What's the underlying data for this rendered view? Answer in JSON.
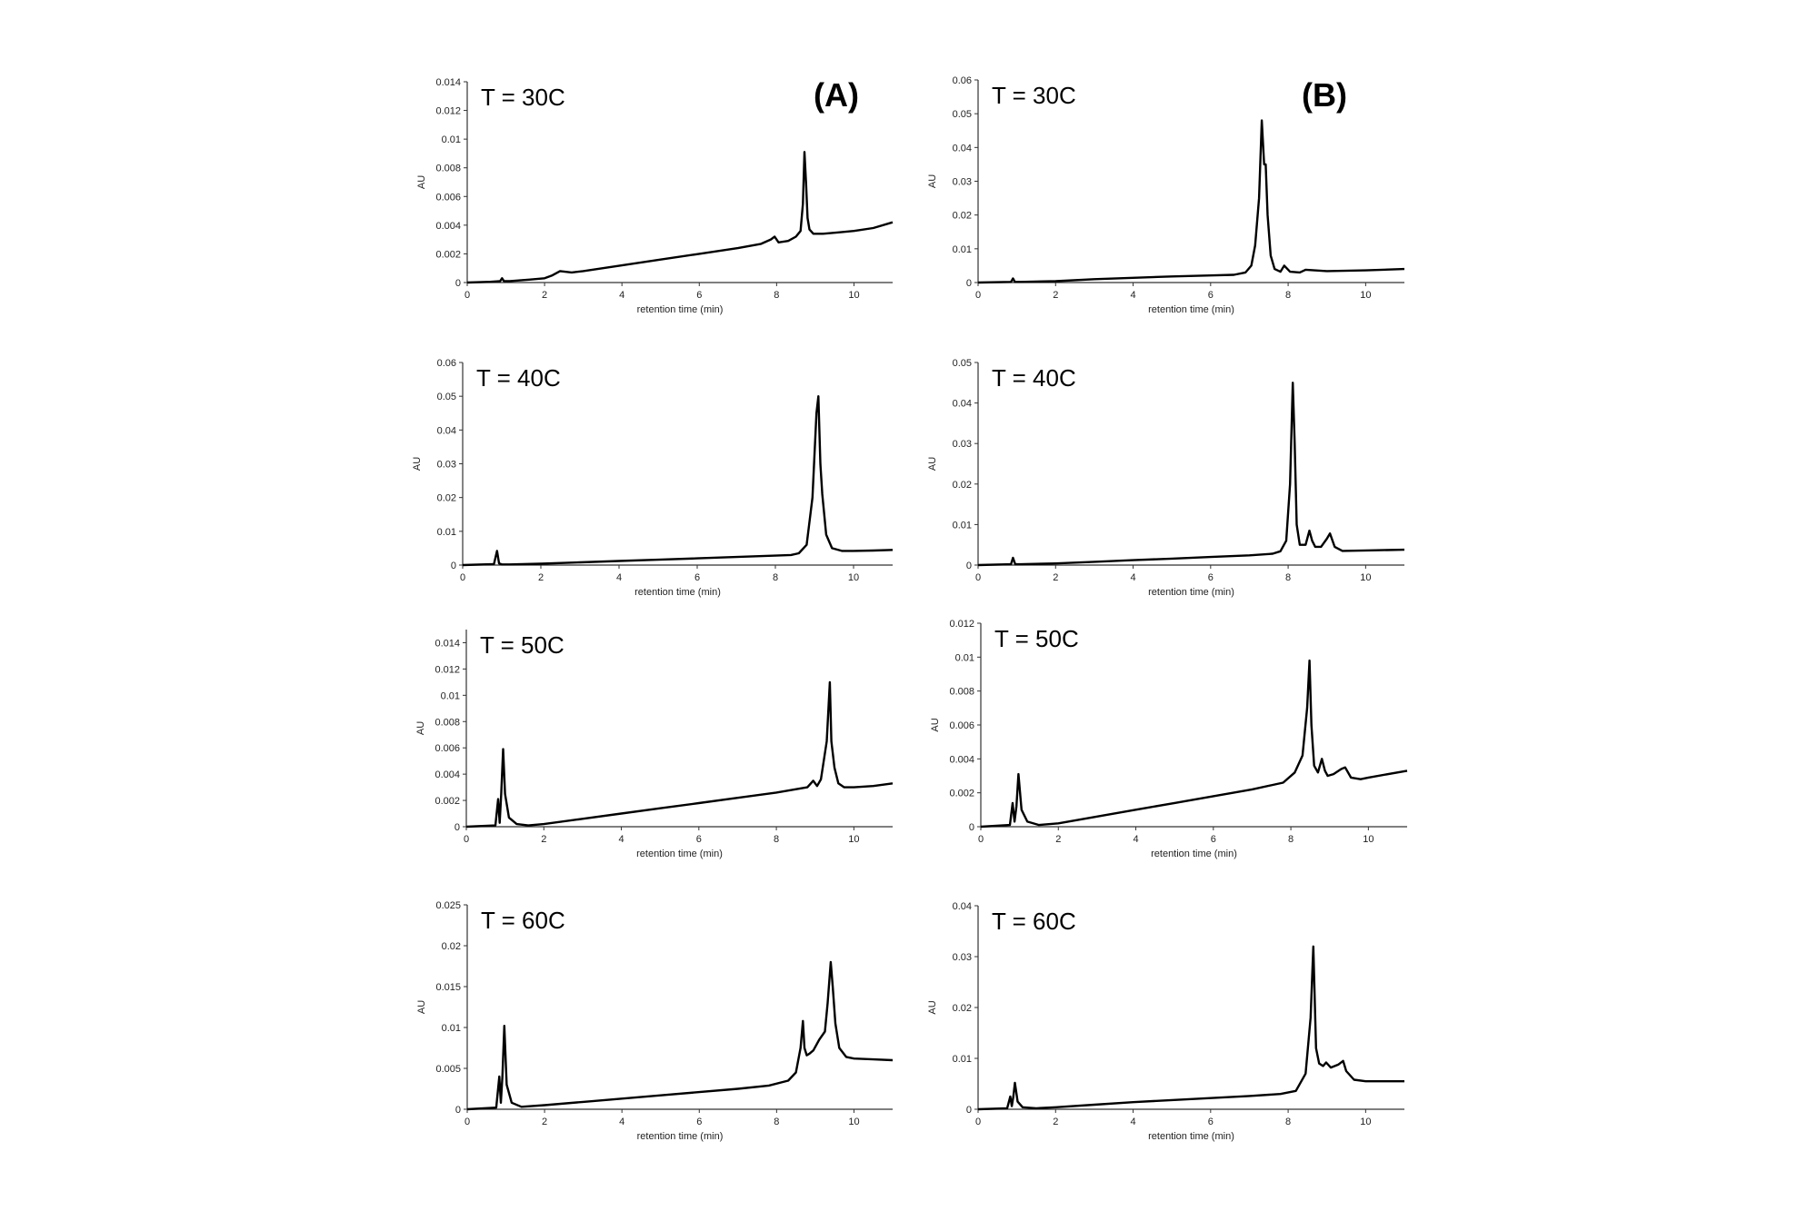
{
  "panel_labels": [
    "(A)",
    "(B)"
  ],
  "chart_data": [
    {
      "id": "A30",
      "type": "line",
      "title": "T = 30C",
      "panel_label": "(A)",
      "xlabel": "retention time (min)",
      "ylabel": "AU",
      "xlim": [
        0,
        11
      ],
      "ylim": [
        0,
        0.014
      ],
      "xticks": [
        0,
        2,
        4,
        6,
        8,
        10
      ],
      "yticks": [
        0,
        0.002,
        0.004,
        0.006,
        0.008,
        0.01,
        0.012,
        0.014
      ],
      "ytick_labels": [
        "0",
        "0.002",
        "0.004",
        "0.006",
        "0.008",
        "0.01",
        "0.012",
        "0.014"
      ],
      "series": [
        {
          "x": [
            0,
            0.6,
            0.85,
            0.9,
            0.95,
            1.1,
            1.6,
            2.0,
            2.2,
            2.4,
            2.7,
            3,
            4,
            5,
            6,
            7,
            7.6,
            7.85,
            7.95,
            8.05,
            8.3,
            8.5,
            8.62,
            8.68,
            8.72,
            8.76,
            8.8,
            8.85,
            8.95,
            9.2,
            9.6,
            10,
            10.5,
            11
          ],
          "y": [
            0,
            5e-05,
            0.0001,
            0.0003,
            0.0001,
            0.0001,
            0.0002,
            0.0003,
            0.0005,
            0.0008,
            0.0007,
            0.0008,
            0.0012,
            0.0016,
            0.002,
            0.0024,
            0.0027,
            0.003,
            0.0032,
            0.0028,
            0.0029,
            0.0032,
            0.0036,
            0.0055,
            0.0091,
            0.007,
            0.0045,
            0.0037,
            0.0034,
            0.0034,
            0.0035,
            0.0036,
            0.0038,
            0.0042
          ]
        }
      ]
    },
    {
      "id": "B30",
      "type": "line",
      "title": "T = 30C",
      "panel_label": "(B)",
      "xlabel": "retention time (min)",
      "ylabel": "AU",
      "xlim": [
        0,
        11
      ],
      "ylim": [
        0,
        0.06
      ],
      "xticks": [
        0,
        2,
        4,
        6,
        8,
        10
      ],
      "yticks": [
        0,
        0.01,
        0.02,
        0.03,
        0.04,
        0.05,
        0.06
      ],
      "ytick_labels": [
        "0",
        "0.01",
        "0.02",
        "0.03",
        "0.04",
        "0.05",
        "0.06"
      ],
      "series": [
        {
          "x": [
            0,
            0.85,
            0.9,
            0.95,
            1.1,
            2,
            3,
            4,
            5,
            6,
            6.6,
            6.9,
            7.05,
            7.15,
            7.25,
            7.32,
            7.38,
            7.42,
            7.47,
            7.55,
            7.65,
            7.8,
            7.9,
            8.05,
            8.3,
            8.45,
            9,
            10,
            11
          ],
          "y": [
            0,
            0.0002,
            0.0012,
            0.0002,
            0.0002,
            0.0004,
            0.001,
            0.0014,
            0.0018,
            0.0021,
            0.0023,
            0.003,
            0.005,
            0.011,
            0.025,
            0.048,
            0.035,
            0.035,
            0.02,
            0.008,
            0.004,
            0.0032,
            0.005,
            0.0032,
            0.003,
            0.0038,
            0.0034,
            0.0036,
            0.004
          ]
        }
      ]
    },
    {
      "id": "A40",
      "type": "line",
      "title": "T = 40C",
      "panel_label": "(A)",
      "xlabel": "retention time (min)",
      "ylabel": "AU",
      "xlim": [
        0,
        11
      ],
      "ylim": [
        0,
        0.06
      ],
      "xticks": [
        0,
        2,
        4,
        6,
        8,
        10
      ],
      "yticks": [
        0,
        0.01,
        0.02,
        0.03,
        0.04,
        0.05,
        0.06
      ],
      "ytick_labels": [
        "0",
        "0.01",
        "0.02",
        "0.03",
        "0.04",
        "0.05",
        "0.06"
      ],
      "series": [
        {
          "x": [
            0,
            0.8,
            0.88,
            0.93,
            1.0,
            1.2,
            2,
            3,
            4,
            5,
            6,
            7,
            8,
            8.4,
            8.6,
            8.8,
            8.95,
            9.05,
            9.1,
            9.15,
            9.2,
            9.3,
            9.45,
            9.7,
            10,
            10.5,
            11
          ],
          "y": [
            0,
            0.0003,
            0.0042,
            0.0005,
            0.0002,
            0.0002,
            0.0004,
            0.0008,
            0.0012,
            0.0016,
            0.002,
            0.0024,
            0.0028,
            0.003,
            0.0035,
            0.006,
            0.02,
            0.045,
            0.05,
            0.03,
            0.021,
            0.009,
            0.005,
            0.0042,
            0.0042,
            0.0043,
            0.0045
          ]
        }
      ]
    },
    {
      "id": "B40",
      "type": "line",
      "title": "T = 40C",
      "panel_label": "(B)",
      "xlabel": "retention time (min)",
      "ylabel": "AU",
      "xlim": [
        0,
        11
      ],
      "ylim": [
        0,
        0.05
      ],
      "xticks": [
        0,
        2,
        4,
        6,
        8,
        10
      ],
      "yticks": [
        0,
        0.01,
        0.02,
        0.03,
        0.04,
        0.05
      ],
      "ytick_labels": [
        "0",
        "0.01",
        "0.02",
        "0.03",
        "0.04",
        "0.05"
      ],
      "series": [
        {
          "x": [
            0,
            0.85,
            0.9,
            0.96,
            1.1,
            2,
            3,
            4,
            5,
            6,
            7,
            7.6,
            7.8,
            7.95,
            8.05,
            8.12,
            8.17,
            8.22,
            8.3,
            8.45,
            8.55,
            8.62,
            8.7,
            8.85,
            9.0,
            9.08,
            9.2,
            9.4,
            10,
            11
          ],
          "y": [
            0,
            0.0002,
            0.0018,
            0.0002,
            0.0002,
            0.0004,
            0.0008,
            0.0012,
            0.0016,
            0.002,
            0.0024,
            0.0028,
            0.0034,
            0.006,
            0.02,
            0.045,
            0.03,
            0.01,
            0.005,
            0.005,
            0.0085,
            0.006,
            0.0045,
            0.0045,
            0.0065,
            0.0078,
            0.0045,
            0.0035,
            0.0036,
            0.0038
          ]
        }
      ]
    },
    {
      "id": "A50",
      "type": "line",
      "title": "T = 50C",
      "panel_label": "(A)",
      "xlabel": "retention time (min)",
      "ylabel": "AU",
      "xlim": [
        0,
        11
      ],
      "ylim": [
        0,
        0.015
      ],
      "xticks": [
        0,
        2,
        4,
        6,
        8,
        10
      ],
      "yticks": [
        0,
        0.002,
        0.004,
        0.006,
        0.008,
        0.01,
        0.012,
        0.014
      ],
      "ytick_labels": [
        "0",
        "0.002",
        "0.004",
        "0.006",
        "0.008",
        "0.01",
        "0.012",
        "0.014"
      ],
      "series": [
        {
          "x": [
            0,
            0.75,
            0.82,
            0.86,
            0.9,
            0.95,
            1.0,
            1.1,
            1.3,
            1.6,
            2,
            3,
            4,
            5,
            6,
            7,
            8,
            8.8,
            8.95,
            9.05,
            9.15,
            9.3,
            9.38,
            9.42,
            9.5,
            9.6,
            9.75,
            10,
            10.5,
            11
          ],
          "y": [
            0,
            0.0001,
            0.0021,
            0.0003,
            0.0025,
            0.0059,
            0.0025,
            0.0007,
            0.0002,
            0.0001,
            0.0002,
            0.0006,
            0.001,
            0.0014,
            0.0018,
            0.0022,
            0.0026,
            0.003,
            0.0035,
            0.0031,
            0.0036,
            0.0065,
            0.011,
            0.0065,
            0.0045,
            0.0033,
            0.003,
            0.003,
            0.0031,
            0.0033
          ]
        }
      ]
    },
    {
      "id": "B50",
      "type": "line",
      "title": "T = 50C",
      "panel_label": "(B)",
      "xlabel": "retention time (min)",
      "ylabel": "AU",
      "xlim": [
        0,
        11
      ],
      "ylim": [
        0,
        0.012
      ],
      "xticks": [
        0,
        2,
        4,
        6,
        8,
        10
      ],
      "yticks": [
        0,
        0.002,
        0.004,
        0.006,
        0.008,
        0.01,
        0.012
      ],
      "ytick_labels": [
        "0",
        "0.002",
        "0.004",
        "0.006",
        "0.008",
        "0.01",
        "0.012"
      ],
      "series": [
        {
          "x": [
            0,
            0.75,
            0.82,
            0.87,
            0.92,
            0.97,
            1.05,
            1.2,
            1.5,
            2,
            3,
            4,
            5,
            6,
            7,
            7.8,
            8.1,
            8.3,
            8.42,
            8.48,
            8.53,
            8.6,
            8.7,
            8.8,
            8.88,
            8.95,
            9.1,
            9.3,
            9.4,
            9.55,
            9.8,
            10,
            11
          ],
          "y": [
            0,
            0.0001,
            0.0014,
            0.0003,
            0.0012,
            0.0031,
            0.001,
            0.0003,
            0.0001,
            0.0002,
            0.0006,
            0.001,
            0.0014,
            0.0018,
            0.0022,
            0.0026,
            0.0032,
            0.0042,
            0.007,
            0.0098,
            0.006,
            0.0036,
            0.0032,
            0.004,
            0.0033,
            0.003,
            0.0031,
            0.0034,
            0.0035,
            0.0029,
            0.0028,
            0.0029,
            0.0033
          ]
        }
      ]
    },
    {
      "id": "A60",
      "type": "line",
      "title": "T = 60C",
      "panel_label": "(A)",
      "xlabel": "retention time (min)",
      "ylabel": "AU",
      "xlim": [
        0,
        11
      ],
      "ylim": [
        0,
        0.025
      ],
      "xticks": [
        0,
        2,
        4,
        6,
        8,
        10
      ],
      "yticks": [
        0,
        0.005,
        0.01,
        0.015,
        0.02,
        0.025
      ],
      "ytick_labels": [
        "0",
        "0.005",
        "0.01",
        "0.015",
        "0.02",
        "0.025"
      ],
      "series": [
        {
          "x": [
            0,
            0.75,
            0.83,
            0.87,
            0.91,
            0.96,
            1.02,
            1.15,
            1.4,
            2,
            3,
            4,
            5,
            6,
            7,
            7.8,
            8.3,
            8.5,
            8.62,
            8.68,
            8.72,
            8.78,
            8.85,
            8.95,
            9.1,
            9.25,
            9.32,
            9.4,
            9.45,
            9.52,
            9.62,
            9.8,
            10,
            10.5,
            11
          ],
          "y": [
            0,
            0.0002,
            0.004,
            0.0008,
            0.004,
            0.0102,
            0.003,
            0.0008,
            0.0003,
            0.0005,
            0.0009,
            0.0013,
            0.0017,
            0.0021,
            0.0025,
            0.0029,
            0.0035,
            0.0045,
            0.0075,
            0.0108,
            0.0075,
            0.0066,
            0.0068,
            0.0072,
            0.0085,
            0.0095,
            0.013,
            0.018,
            0.015,
            0.0105,
            0.0075,
            0.0064,
            0.0062,
            0.0061,
            0.006
          ]
        }
      ]
    },
    {
      "id": "B60",
      "type": "line",
      "title": "T = 60C",
      "panel_label": "(B)",
      "xlabel": "retention time (min)",
      "ylabel": "AU",
      "xlim": [
        0,
        11
      ],
      "ylim": [
        0,
        0.04
      ],
      "xticks": [
        0,
        2,
        4,
        6,
        8,
        10
      ],
      "yticks": [
        0,
        0.01,
        0.02,
        0.03,
        0.04
      ],
      "ytick_labels": [
        "0",
        "0.01",
        "0.02",
        "0.03",
        "0.04"
      ],
      "series": [
        {
          "x": [
            0,
            0.75,
            0.83,
            0.87,
            0.91,
            0.95,
            1.02,
            1.15,
            1.5,
            2,
            3,
            4,
            5,
            6,
            7,
            7.8,
            8.2,
            8.45,
            8.58,
            8.65,
            8.72,
            8.8,
            8.9,
            8.98,
            9.1,
            9.3,
            9.42,
            9.5,
            9.7,
            10,
            11
          ],
          "y": [
            0,
            0.0002,
            0.0025,
            0.0006,
            0.0025,
            0.0052,
            0.0015,
            0.0004,
            0.0002,
            0.0004,
            0.0009,
            0.0014,
            0.0018,
            0.0022,
            0.0026,
            0.003,
            0.0036,
            0.007,
            0.018,
            0.032,
            0.012,
            0.009,
            0.0085,
            0.0092,
            0.0082,
            0.0088,
            0.0095,
            0.0075,
            0.0058,
            0.0055,
            0.0055
          ]
        }
      ]
    }
  ]
}
